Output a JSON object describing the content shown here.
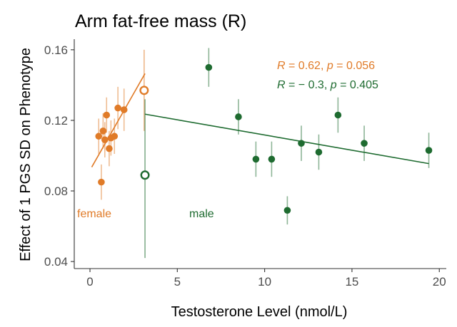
{
  "chart_data": {
    "type": "scatter",
    "title": "Arm fat-free mass (R)",
    "xlabel": "Testosterone Level (nmol/L)",
    "ylabel": "Effect of 1 PGS SD on Phenotype",
    "xlim": [
      -0.9,
      20.4
    ],
    "ylim": [
      0.036,
      0.166
    ],
    "xticks": [
      0,
      5,
      10,
      15,
      20
    ],
    "yticks": [
      0.04,
      0.08,
      0.12,
      0.16
    ],
    "ytick_labels": [
      "0.04",
      "0.08",
      "0.12",
      "0.16"
    ],
    "grid": false,
    "series": [
      {
        "name": "female",
        "color": "#E07B28",
        "points": [
          {
            "x": 0.5,
            "y": 0.111,
            "low": 0.101,
            "high": 0.121
          },
          {
            "x": 0.65,
            "y": 0.085,
            "low": 0.075,
            "high": 0.095
          },
          {
            "x": 0.75,
            "y": 0.114,
            "low": 0.104,
            "high": 0.124
          },
          {
            "x": 0.85,
            "y": 0.109,
            "low": 0.099,
            "high": 0.119
          },
          {
            "x": 0.95,
            "y": 0.123,
            "low": 0.113,
            "high": 0.133
          },
          {
            "x": 1.1,
            "y": 0.104,
            "low": 0.094,
            "high": 0.114
          },
          {
            "x": 1.2,
            "y": 0.11,
            "low": 0.1,
            "high": 0.12
          },
          {
            "x": 1.4,
            "y": 0.111,
            "low": 0.101,
            "high": 0.121
          },
          {
            "x": 1.6,
            "y": 0.127,
            "low": 0.115,
            "high": 0.139
          },
          {
            "x": 1.95,
            "y": 0.126,
            "low": 0.114,
            "high": 0.138
          }
        ],
        "open_point": {
          "x": 3.1,
          "y": 0.137,
          "low": 0.114,
          "high": 0.16
        },
        "fit": {
          "x": [
            0.1,
            3.15
          ],
          "y": [
            0.0935,
            0.1465
          ]
        },
        "group_label": "female",
        "stat": {
          "r_label": "R",
          "r_value": " = 0.62, ",
          "p_label": "p",
          "p_value": " = 0.056"
        }
      },
      {
        "name": "male",
        "color": "#1E6B30",
        "points": [
          {
            "x": 6.8,
            "y": 0.15,
            "low": 0.139,
            "high": 0.161
          },
          {
            "x": 8.5,
            "y": 0.122,
            "low": 0.112,
            "high": 0.132
          },
          {
            "x": 9.5,
            "y": 0.098,
            "low": 0.088,
            "high": 0.108
          },
          {
            "x": 10.4,
            "y": 0.098,
            "low": 0.088,
            "high": 0.108
          },
          {
            "x": 11.3,
            "y": 0.069,
            "low": 0.061,
            "high": 0.077
          },
          {
            "x": 12.1,
            "y": 0.107,
            "low": 0.097,
            "high": 0.117
          },
          {
            "x": 13.1,
            "y": 0.102,
            "low": 0.092,
            "high": 0.112
          },
          {
            "x": 14.2,
            "y": 0.123,
            "low": 0.113,
            "high": 0.133
          },
          {
            "x": 15.7,
            "y": 0.107,
            "low": 0.097,
            "high": 0.117
          },
          {
            "x": 19.4,
            "y": 0.103,
            "low": 0.093,
            "high": 0.113
          }
        ],
        "open_point": {
          "x": 3.15,
          "y": 0.089,
          "low": 0.042,
          "high": 0.132
        },
        "fit": {
          "x": [
            3.15,
            19.4
          ],
          "y": [
            0.1235,
            0.0955
          ]
        },
        "group_label": "male",
        "stat": {
          "r_label": "R",
          "r_value": " = − 0.3, ",
          "p_label": "p",
          "p_value": " = 0.405"
        }
      }
    ]
  }
}
